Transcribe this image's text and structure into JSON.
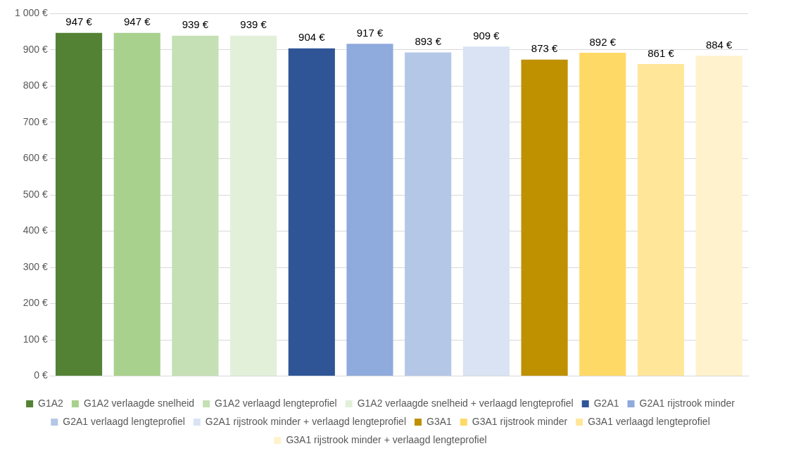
{
  "chart_data": {
    "type": "bar",
    "categories": [
      null
    ],
    "series": [
      {
        "name": "G1A2",
        "color": "#548235",
        "values": [
          947
        ],
        "value_labels": [
          "947 €"
        ]
      },
      {
        "name": "G1A2 verlaagde snelheid",
        "color": "#a9d18e",
        "values": [
          947
        ],
        "value_labels": [
          "947 €"
        ]
      },
      {
        "name": "G1A2 verlaagd lengteprofiel",
        "color": "#c5e0b4",
        "values": [
          939
        ],
        "value_labels": [
          "939 €"
        ]
      },
      {
        "name": "G1A2 verlaagde snelheid + verlaagd lengteprofiel",
        "color": "#e2f0d9",
        "values": [
          939
        ],
        "value_labels": [
          "939 €"
        ]
      },
      {
        "name": "G2A1",
        "color": "#2f5597",
        "values": [
          904
        ],
        "value_labels": [
          "904 €"
        ]
      },
      {
        "name": "G2A1 rijstrook minder",
        "color": "#8faadc",
        "values": [
          917
        ],
        "value_labels": [
          "917 €"
        ]
      },
      {
        "name": "G2A1 verlaagd lengteprofiel",
        "color": "#b4c7e7",
        "values": [
          893
        ],
        "value_labels": [
          "893 €"
        ]
      },
      {
        "name": "G2A1 rijstrook minder + verlaagd lengteprofiel",
        "color": "#dae3f3",
        "values": [
          909
        ],
        "value_labels": [
          "909 €"
        ]
      },
      {
        "name": "G3A1",
        "color": "#bf9000",
        "values": [
          873
        ],
        "value_labels": [
          "873 €"
        ]
      },
      {
        "name": "G3A1 rijstrook minder",
        "color": "#ffd966",
        "values": [
          892
        ],
        "value_labels": [
          "892 €"
        ]
      },
      {
        "name": "G3A1 verlaagd lengteprofiel",
        "color": "#ffe699",
        "values": [
          861
        ],
        "value_labels": [
          "861 €"
        ]
      },
      {
        "name": "G3A1 rijstrook minder + verlaagd lengteprofiel",
        "color": "#fff2cc",
        "values": [
          884
        ],
        "value_labels": [
          "884 €"
        ]
      }
    ],
    "ylim": [
      0,
      1000
    ],
    "yticks": [
      {
        "value": 0,
        "label": "0 €"
      },
      {
        "value": 100,
        "label": "100 €"
      },
      {
        "value": 200,
        "label": "200 €"
      },
      {
        "value": 300,
        "label": "300 €"
      },
      {
        "value": 400,
        "label": "400 €"
      },
      {
        "value": 500,
        "label": "500 €"
      },
      {
        "value": 600,
        "label": "600 €"
      },
      {
        "value": 700,
        "label": "700 €"
      },
      {
        "value": 800,
        "label": "800 €"
      },
      {
        "value": 900,
        "label": "900 €"
      },
      {
        "value": 1000,
        "label": "1 000 €"
      }
    ],
    "grid": "y",
    "legend": "bottom"
  }
}
